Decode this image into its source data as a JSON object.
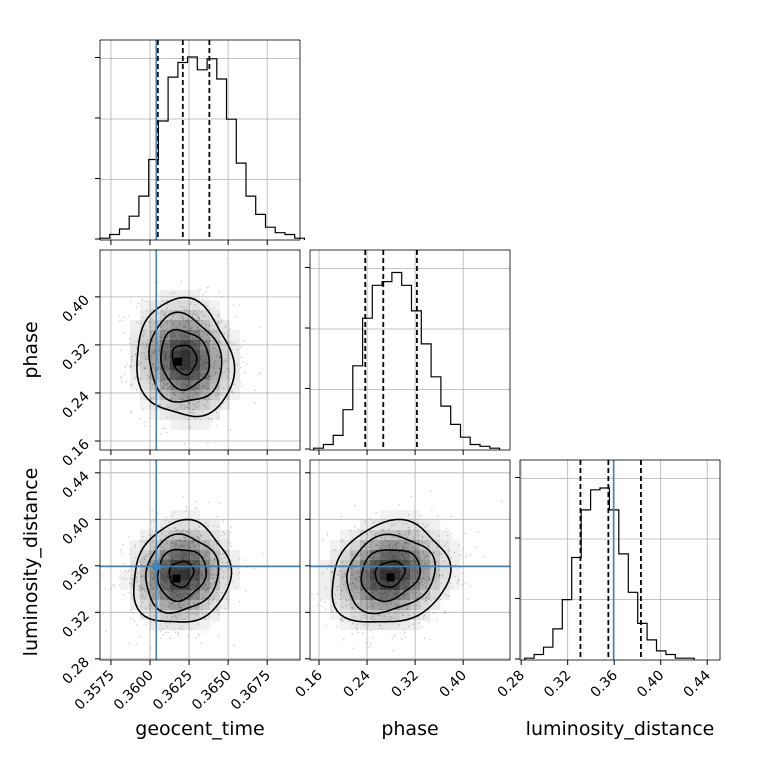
{
  "chart_data": {
    "type": "corner",
    "parameters": [
      "geocent_time",
      "phase",
      "luminosity_distance"
    ],
    "truths": {
      "geocent_time": 0.3604,
      "phase": null,
      "luminosity_distance": 0.3595
    },
    "ranges": {
      "geocent_time": [
        0.3568,
        0.3696
      ],
      "phase": [
        0.145,
        0.478
      ],
      "luminosity_distance": [
        0.279,
        0.451
      ]
    },
    "ticks": {
      "geocent_time": [
        "0.3575",
        "0.3600",
        "0.3625",
        "0.3650",
        "0.3675"
      ],
      "phase": [
        "0.16",
        "0.24",
        "0.32",
        "0.40"
      ],
      "luminosity_distance_y": [
        "0.28",
        "0.32",
        "0.36",
        "0.40",
        "0.44"
      ],
      "luminosity_distance_x": [
        "0.28",
        "0.32",
        "0.36",
        "0.40",
        "0.44"
      ]
    },
    "quantiles": {
      "geocent_time": [
        0.3605,
        0.3621,
        0.3638
      ],
      "phase": [
        0.237,
        0.267,
        0.323
      ],
      "luminosity_distance": [
        0.331,
        0.355,
        0.383
      ]
    },
    "histograms": {
      "geocent_time": {
        "edges_start": 0.3568,
        "bin_width": 0.000623,
        "counts": [
          0.01,
          0.03,
          0.06,
          0.13,
          0.24,
          0.44,
          0.65,
          0.89,
          0.97,
          1.0,
          0.93,
          0.99,
          0.88,
          0.66,
          0.42,
          0.24,
          0.14,
          0.07,
          0.04,
          0.03,
          0.01
        ]
      },
      "phase": {
        "edges_start": 0.151,
        "bin_width": 0.0163,
        "counts": [
          0.01,
          0.03,
          0.08,
          0.22,
          0.46,
          0.72,
          0.9,
          0.92,
          0.97,
          0.9,
          0.76,
          0.58,
          0.4,
          0.24,
          0.14,
          0.07,
          0.03,
          0.02,
          0.01
        ]
      },
      "luminosity_distance": {
        "edges_start": 0.283,
        "bin_width": 0.0081,
        "counts": [
          0.01,
          0.03,
          0.07,
          0.17,
          0.33,
          0.56,
          0.82,
          0.93,
          0.94,
          0.82,
          0.58,
          0.37,
          0.2,
          0.11,
          0.05,
          0.03,
          0.01,
          0.01
        ]
      }
    },
    "joint": [
      {
        "x": "geocent_time",
        "y": "phase",
        "center": [
          0.3622,
          0.296
        ],
        "sigma": [
          0.00155,
          0.049
        ],
        "rho": -0.1,
        "mode": [
          0.3618,
          0.292
        ]
      },
      {
        "x": "geocent_time",
        "y": "luminosity_distance",
        "center": [
          0.362,
          0.353
        ],
        "sigma": [
          0.00155,
          0.022
        ],
        "rho": 0.1,
        "mode": [
          0.3617,
          0.349
        ]
      },
      {
        "x": "phase",
        "y": "luminosity_distance",
        "center": [
          0.278,
          0.353
        ],
        "sigma": [
          0.049,
          0.022
        ],
        "rho": 0.15,
        "mode": [
          0.279,
          0.35
        ]
      }
    ],
    "grid": true,
    "colors": {
      "truth": "#4682b4",
      "hist": "#000000",
      "contour": "#000000",
      "grid": "#b0b0b0",
      "density": "#000000"
    }
  }
}
